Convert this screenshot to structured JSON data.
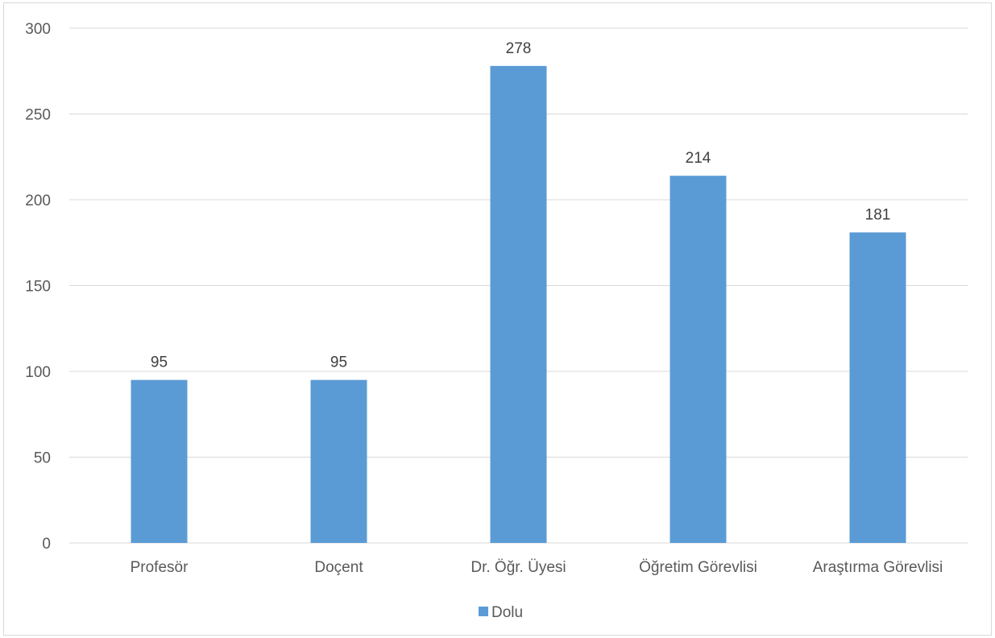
{
  "chart_data": {
    "type": "bar",
    "categories": [
      "Profesör",
      "Doçent",
      "Dr. Öğr. Üyesi",
      "Öğretim Görevlisi",
      "Araştırma Görevlisi"
    ],
    "series": [
      {
        "name": "Dolu",
        "values": [
          95,
          95,
          278,
          214,
          181
        ],
        "color": "#5b9bd5"
      }
    ],
    "ylim": [
      0,
      300
    ],
    "yticks": [
      0,
      50,
      100,
      150,
      200,
      250,
      300
    ],
    "grid": true,
    "data_labels": true,
    "legend_position": "bottom",
    "colors": {
      "gridline": "#d9d9d9",
      "text": "#595959",
      "border": "#d9d9d9"
    }
  }
}
